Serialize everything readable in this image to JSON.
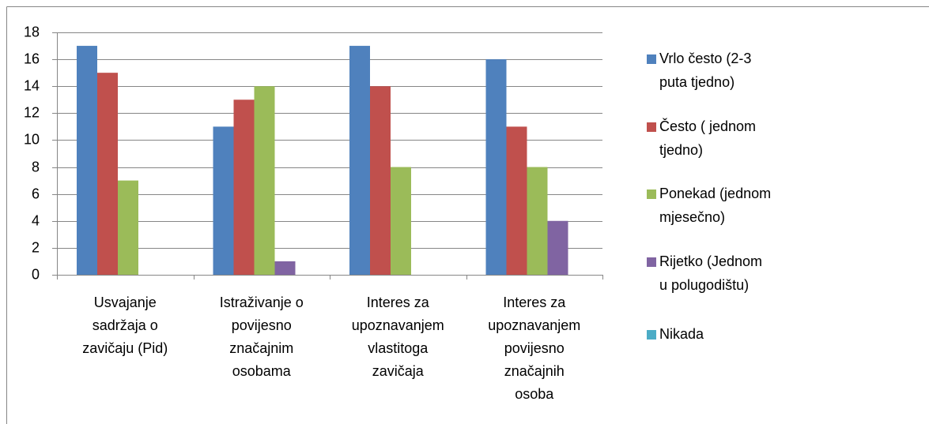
{
  "chart_data": {
    "type": "bar",
    "categories": [
      "Usvajanje sadržaja o zavičaju (Pid)",
      "Istraživanje o povijesno značajnim osobama",
      "Interes za upoznavanjem vlastitoga zavičaja",
      "Interes za upoznavanjem povijesno značajnih osoba"
    ],
    "series": [
      {
        "name": "Vrlo često (2-3 puta tjedno)",
        "color": "#4f81bd",
        "values": [
          17,
          11,
          17,
          16
        ]
      },
      {
        "name": "Često ( jednom tjedno)",
        "color": "#c0504d",
        "values": [
          15,
          13,
          14,
          11
        ]
      },
      {
        "name": "Ponekad (jednom mjesečno)",
        "color": "#9bbb59",
        "values": [
          7,
          14,
          8,
          8
        ]
      },
      {
        "name": "Rijetko (Jednom u polugodištu)",
        "color": "#8064a2",
        "values": [
          0,
          1,
          0,
          4
        ]
      },
      {
        "name": "Nikada",
        "color": "#4bacc6",
        "values": [
          0,
          0,
          0,
          0
        ]
      }
    ],
    "ylim": [
      0,
      18
    ],
    "yticks": [
      0,
      2,
      4,
      6,
      8,
      10,
      12,
      14,
      16,
      18
    ],
    "grid": true,
    "legend": "right"
  }
}
